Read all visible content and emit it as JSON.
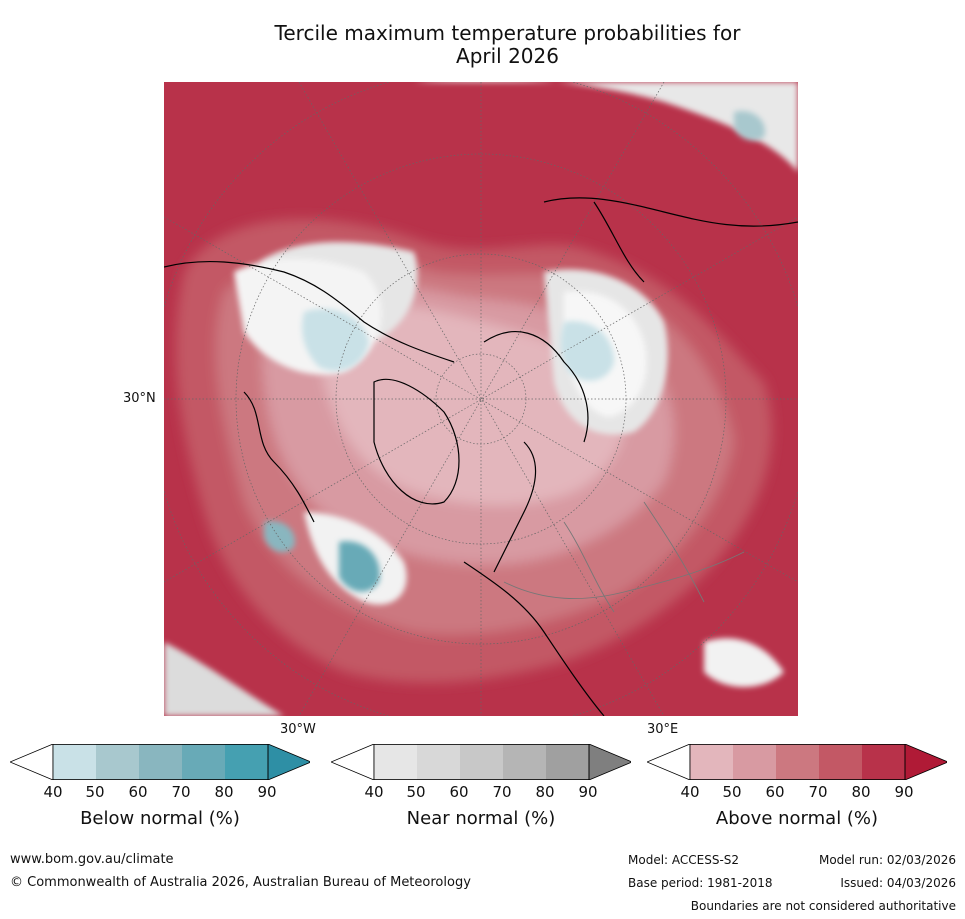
{
  "title_line1": "Tercile maximum temperature probabilities for",
  "title_line2": "April 2026",
  "map": {
    "lat_label": "30°N",
    "lon_label_w": "30°W",
    "lon_label_e": "30°E"
  },
  "colorbars": [
    {
      "label": "Below normal (%)",
      "ticks": [
        "40",
        "50",
        "60",
        "70",
        "80",
        "90"
      ],
      "colors": [
        "#ffffff",
        "#c9e1e7",
        "#a8c8ce",
        "#89b6bf",
        "#68aab7",
        "#45a0b1",
        "#2e8fa5"
      ]
    },
    {
      "label": "Near normal (%)",
      "ticks": [
        "40",
        "50",
        "60",
        "70",
        "80",
        "90"
      ],
      "colors": [
        "#ffffff",
        "#e6e6e6",
        "#d8d8d8",
        "#c8c8c8",
        "#b5b5b5",
        "#a0a0a0",
        "#7f7f7f"
      ]
    },
    {
      "label": "Above normal (%)",
      "ticks": [
        "40",
        "50",
        "60",
        "70",
        "80",
        "90"
      ],
      "colors": [
        "#ffffff",
        "#e3b6bc",
        "#d89aa2",
        "#cc7880",
        "#c35865",
        "#b8324a",
        "#b01a36"
      ]
    }
  ],
  "footer": {
    "url": "www.bom.gov.au/climate",
    "copyright": "© Commonwealth of Australia 2026, Australian Bureau of Meteorology",
    "model": "Model: ACCESS-S2",
    "base_period": "Base period: 1981-2018",
    "model_run": "Model run: 02/03/2026",
    "issued": "Issued: 04/03/2026",
    "disclaimer": "Boundaries are not considered authoritative"
  }
}
